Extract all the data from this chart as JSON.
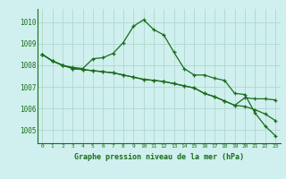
{
  "xlabel": "Graphe pression niveau de la mer (hPa)",
  "background_color": "#cff0ee",
  "grid_color": "#b0d8cc",
  "line_color": "#1a6b1a",
  "ylim": [
    1004.4,
    1010.6
  ],
  "xlim": [
    -0.5,
    23.5
  ],
  "yticks": [
    1005,
    1006,
    1007,
    1008,
    1009,
    1010
  ],
  "xticks": [
    0,
    1,
    2,
    3,
    4,
    5,
    6,
    7,
    8,
    9,
    10,
    11,
    12,
    13,
    14,
    15,
    16,
    17,
    18,
    19,
    20,
    21,
    22,
    23
  ],
  "series": [
    [
      1008.5,
      1008.2,
      1008.0,
      1007.9,
      1007.85,
      1008.3,
      1008.35,
      1008.55,
      1009.05,
      1009.8,
      1010.1,
      1009.65,
      1009.4,
      1008.6,
      1007.85,
      1007.55,
      1007.55,
      1007.4,
      1007.3,
      1006.7,
      1006.65,
      1005.8,
      1005.2,
      1004.75
    ],
    [
      1008.5,
      1008.2,
      1008.0,
      1007.85,
      1007.8,
      1007.75,
      1007.7,
      1007.65,
      1007.55,
      1007.45,
      1007.35,
      1007.3,
      1007.25,
      1007.15,
      1007.05,
      1006.95,
      1006.7,
      1006.55,
      1006.35,
      1006.15,
      1006.5,
      1006.45,
      1006.45,
      1006.4
    ],
    [
      1008.5,
      1008.2,
      1008.0,
      1007.85,
      1007.8,
      1007.75,
      1007.7,
      1007.65,
      1007.55,
      1007.45,
      1007.35,
      1007.3,
      1007.25,
      1007.15,
      1007.05,
      1006.95,
      1006.7,
      1006.55,
      1006.35,
      1006.15,
      1006.1,
      1005.95,
      1005.75,
      1005.45
    ]
  ]
}
